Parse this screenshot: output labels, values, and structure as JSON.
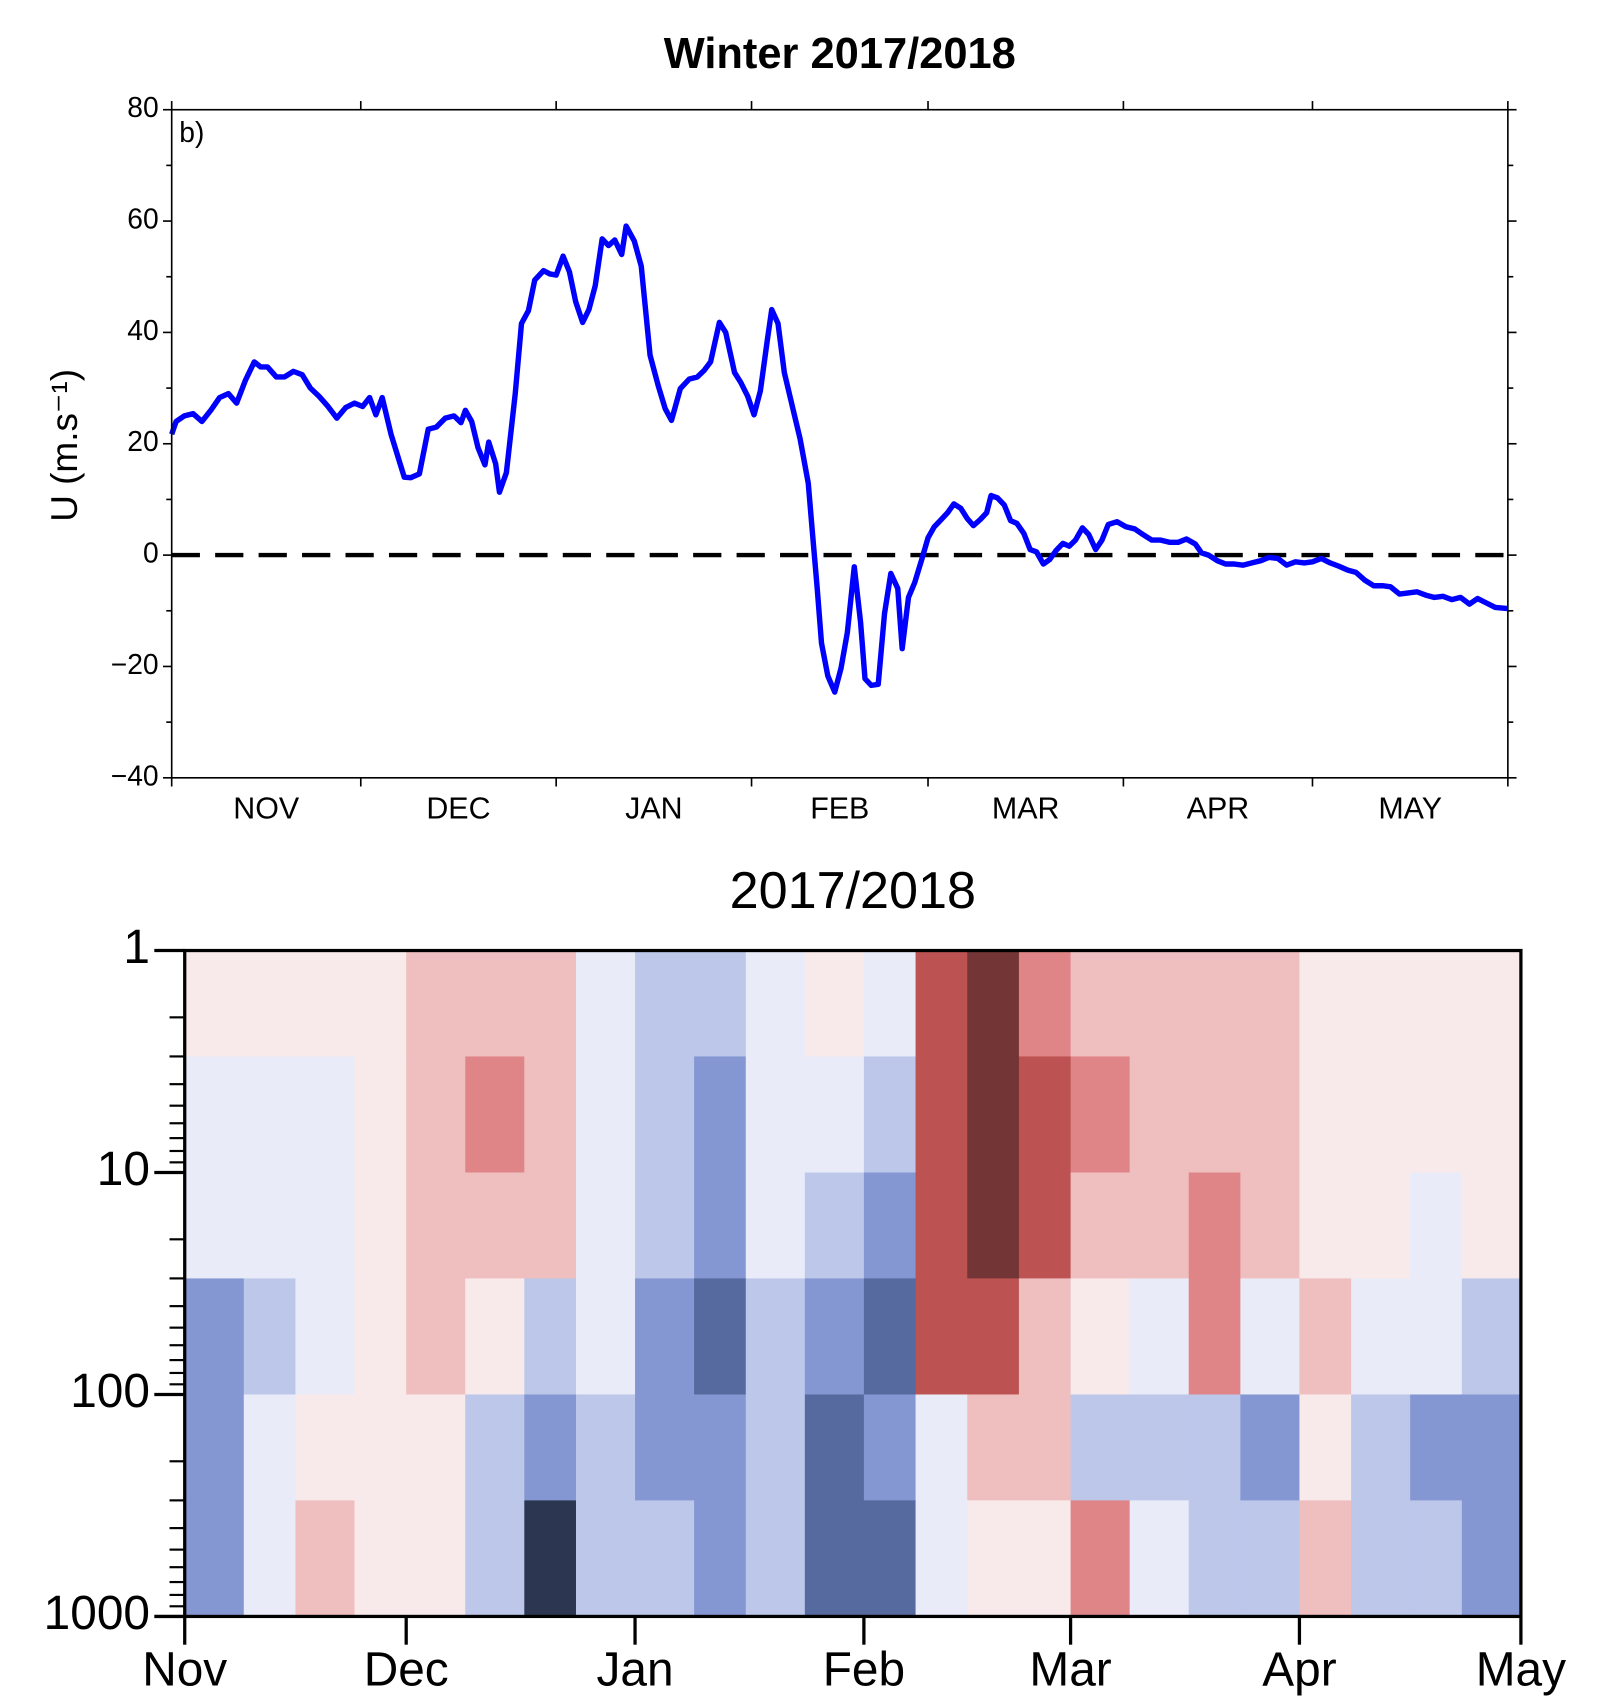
{
  "chart_data": [
    {
      "type": "line",
      "title": "Winter 2017/2018",
      "annotation": "b)",
      "ylabel": "U (m.s⁻¹)",
      "xlim": [
        0,
        212
      ],
      "xticks": [
        0,
        30,
        61,
        92,
        120,
        151,
        181,
        212
      ],
      "xlabels": [
        {
          "value": 15,
          "label": "NOV"
        },
        {
          "value": 45.5,
          "label": "DEC"
        },
        {
          "value": 76.5,
          "label": "JAN"
        },
        {
          "value": 106,
          "label": "FEB"
        },
        {
          "value": 135.5,
          "label": "MAR"
        },
        {
          "value": 166,
          "label": "APR"
        },
        {
          "value": 196.5,
          "label": "MAY"
        }
      ],
      "ylim": [
        -40,
        80
      ],
      "yticks": [
        {
          "value": -40,
          "label": "−40"
        },
        {
          "value": -20,
          "label": "−20"
        },
        0,
        20,
        40,
        60,
        80
      ],
      "yminor_ticks": [
        -30,
        -10,
        10,
        30,
        50,
        70
      ],
      "hline": 0,
      "series": [
        {
          "color": "#0000ff",
          "x": [
            0,
            0.7,
            2,
            3.4,
            4.8,
            6.2,
            7.6,
            9,
            10.3,
            11.7,
            13.1,
            14.1,
            15.2,
            16.6,
            17.9,
            19.3,
            20.7,
            22,
            23.4,
            24.8,
            26.2,
            27.6,
            29,
            30.3,
            31.4,
            32.4,
            33.4,
            34.8,
            36.9,
            37.9,
            39.3,
            40.7,
            42,
            43.4,
            44.8,
            45.9,
            46.6,
            47.6,
            48.6,
            49.7,
            50.3,
            51.4,
            52,
            53.1,
            54.5,
            55.5,
            56.6,
            57.6,
            59,
            60,
            61,
            62.1,
            63.1,
            64.1,
            65.2,
            66.2,
            67.2,
            68.3,
            69.3,
            70.3,
            71.4,
            72.1,
            73.4,
            74.5,
            75.9,
            77.2,
            78.3,
            79.3,
            80.7,
            82.1,
            83.4,
            84.5,
            85.5,
            86.9,
            87.9,
            89.3,
            90.3,
            91.4,
            92.4,
            93.4,
            94.5,
            95.2,
            96.2,
            97.2,
            98.6,
            99.7,
            101,
            101.7,
            102.4,
            103.1,
            104.1,
            105.2,
            106.2,
            107.2,
            108.3,
            109.3,
            110,
            111,
            112.1,
            113.1,
            114.1,
            115.2,
            115.9,
            116.9,
            117.9,
            119,
            120,
            121,
            122.1,
            123.1,
            124.1,
            125.2,
            126.2,
            127.2,
            128.3,
            129.3,
            130,
            131,
            132.1,
            133.1,
            134.1,
            135.2,
            136.2,
            137.2,
            138.3,
            139.3,
            140.3,
            141.4,
            142.4,
            143.4,
            144.5,
            145.5,
            146.6,
            147.6,
            148.6,
            150,
            151.4,
            152.8,
            154.1,
            155.5,
            156.9,
            158.3,
            159.7,
            161,
            162.4,
            163.4,
            164.5,
            165.9,
            167.2,
            168.6,
            170,
            171.4,
            172.8,
            174.1,
            175.5,
            176.9,
            178.3,
            179.7,
            181,
            182.4,
            183.8,
            185.2,
            186.6,
            187.9,
            189.3,
            190.7,
            192.1,
            193.4,
            194.8,
            196.2,
            197.6,
            199,
            200.3,
            201.7,
            203.1,
            204.5,
            205.9,
            207.2,
            208.6,
            210,
            212
          ],
          "values": [
            21.7,
            24,
            25,
            25.4,
            24,
            26,
            28.3,
            29,
            27.3,
            31.4,
            34.7,
            33.8,
            33.8,
            32,
            32,
            33,
            32.4,
            30,
            28.5,
            26.7,
            24.6,
            26.5,
            27.3,
            26.7,
            28.3,
            25.2,
            28.3,
            21.7,
            14,
            13.9,
            14.6,
            22.6,
            23,
            24.6,
            25,
            23.8,
            26,
            24,
            19.3,
            16.2,
            20.3,
            16.4,
            11.3,
            14.8,
            28.9,
            41.6,
            43.9,
            49.4,
            51.1,
            50.5,
            50.3,
            53.7,
            50.9,
            45.5,
            41.8,
            44.1,
            48.4,
            56.8,
            55.6,
            56.6,
            54,
            59.1,
            56.4,
            51.9,
            35.9,
            30.4,
            26.3,
            24.2,
            29.9,
            31.6,
            32,
            33.2,
            34.7,
            41.8,
            40,
            32.8,
            31,
            28.5,
            25.2,
            29.5,
            38.6,
            44.1,
            41.6,
            32.8,
            26.1,
            20.9,
            12.9,
            3.5,
            -5.7,
            -15.8,
            -21.7,
            -24.6,
            -20.3,
            -13.9,
            -2.1,
            -12.1,
            -22.2,
            -23.4,
            -23.2,
            -10.5,
            -3.3,
            -6,
            -16.8,
            -7.6,
            -4.9,
            -0.8,
            3.1,
            5.1,
            6.4,
            7.6,
            9.2,
            8.4,
            6.6,
            5.3,
            6.4,
            7.6,
            10.7,
            10.3,
            9,
            6.2,
            5.7,
            3.9,
            1,
            0.6,
            -1.6,
            -0.8,
            0.8,
            2.1,
            1.6,
            2.7,
            4.9,
            3.7,
            1,
            2.7,
            5.5,
            6,
            5.1,
            4.7,
            3.7,
            2.7,
            2.7,
            2.3,
            2.3,
            2.9,
            2,
            0.4,
            0,
            -1,
            -1.6,
            -1.6,
            -1.8,
            -1.4,
            -1,
            -0.4,
            -0.6,
            -1.8,
            -1.2,
            -1.4,
            -1.2,
            -0.6,
            -1.4,
            -2,
            -2.7,
            -3.1,
            -4.5,
            -5.5,
            -5.5,
            -5.7,
            -7,
            -6.8,
            -6.6,
            -7.2,
            -7.6,
            -7.4,
            -8,
            -7.6,
            -8.8,
            -7.8,
            -8.6,
            -9.4,
            -9.6
          ]
        }
      ]
    },
    {
      "type": "contour",
      "title": "2017/2018",
      "xlim": [
        0,
        181
      ],
      "xticks": [
        {
          "value": 0,
          "label": "Nov"
        },
        {
          "value": 30,
          "label": "Dec"
        },
        {
          "value": 61,
          "label": "Jan"
        },
        {
          "value": 92,
          "label": "Feb"
        },
        {
          "value": 120,
          "label": "Mar"
        },
        {
          "value": 151,
          "label": "Apr"
        },
        {
          "value": 181,
          "label": "May"
        }
      ],
      "ylim": [
        1,
        1000
      ],
      "log_y": true,
      "y_inverted": true,
      "yticks": [
        1,
        10,
        100,
        1000
      ],
      "yminor_ticks": [
        2,
        3,
        4,
        5,
        6,
        7,
        8,
        9,
        20,
        30,
        40,
        50,
        60,
        70,
        80,
        90,
        200,
        300,
        400,
        500,
        600,
        700,
        800,
        900
      ],
      "levels": [
        -5,
        -4,
        -3,
        -2,
        -1,
        1,
        2,
        3,
        4,
        5
      ],
      "colors": [
        "#2c3650",
        "#566aa0",
        "#8497d2",
        "#bcc7ea",
        "#e9ecf8",
        "#f8eaea",
        "#efbfc0",
        "#df8587",
        "#bd5253",
        "#733536"
      ],
      "x_edges": [
        0,
        8,
        15,
        23,
        30,
        38,
        46,
        53,
        61,
        69,
        76,
        84,
        92,
        99,
        106,
        113,
        120,
        128,
        136,
        143,
        151,
        158,
        166,
        173,
        181
      ],
      "y_edges": [
        1,
        3,
        10,
        30,
        100,
        300,
        1000
      ],
      "z": [
        [
          1,
          1,
          1,
          1,
          2,
          2,
          2,
          -1,
          -2,
          -2,
          -1,
          1,
          -1,
          4,
          5,
          3,
          2,
          2,
          2,
          2,
          1,
          1,
          1,
          1
        ],
        [
          -1,
          -1,
          -1,
          1,
          2,
          3,
          2,
          -1,
          -2,
          -3,
          -1,
          -1,
          -2,
          4,
          5,
          4,
          3,
          2,
          2,
          2,
          1,
          1,
          1,
          1
        ],
        [
          -1,
          -1,
          -1,
          1,
          2,
          2,
          2,
          -1,
          -2,
          -3,
          -1,
          -2,
          -3,
          4,
          5,
          4,
          2,
          2,
          3,
          2,
          1,
          1,
          -1,
          1
        ],
        [
          -3,
          -2,
          -1,
          1,
          2,
          1,
          -2,
          -1,
          -3,
          -4,
          -2,
          -3,
          -4,
          4,
          4,
          2,
          1,
          -1,
          3,
          -1,
          2,
          -1,
          -1,
          -2
        ],
        [
          -3,
          -1,
          1,
          1,
          1,
          -2,
          -3,
          -2,
          -3,
          -3,
          -2,
          -4,
          -3,
          -1,
          2,
          2,
          -2,
          -2,
          -2,
          -3,
          1,
          -2,
          -3,
          -3
        ],
        [
          -3,
          -1,
          2,
          1,
          1,
          -2,
          -5,
          -2,
          -2,
          -3,
          -2,
          -4,
          -4,
          -1,
          1,
          1,
          3,
          -1,
          -2,
          -2,
          2,
          -2,
          -2,
          -3
        ]
      ]
    }
  ]
}
